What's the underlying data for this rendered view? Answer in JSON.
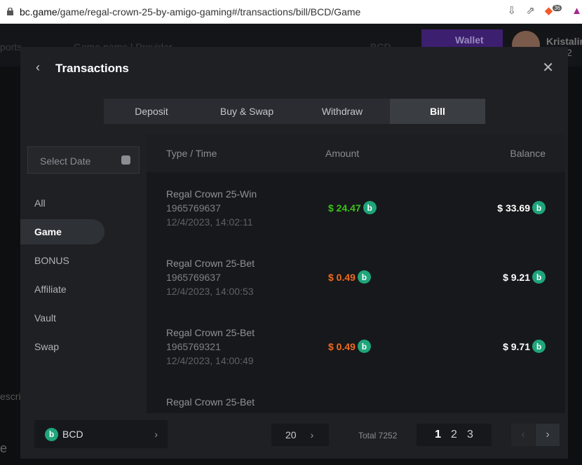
{
  "browser": {
    "url_host": "bc.game",
    "url_path": "/game/regal-crown-25-by-amigo-gaming#/transactions/bill/BCD/Game",
    "shield_badge": "36"
  },
  "background": {
    "nav_sports": "ports",
    "search_placeholder": "Game name | Provider",
    "currency": "BCD",
    "wallet": "Wallet",
    "username": "Kristalin",
    "level": "2",
    "desc": "escri",
    "letter": "e"
  },
  "modal": {
    "title": "Transactions",
    "tabs": [
      {
        "label": "Deposit"
      },
      {
        "label": "Buy & Swap"
      },
      {
        "label": "Withdraw"
      },
      {
        "label": "Bill"
      }
    ],
    "date_placeholder": "Select Date",
    "sidebar": [
      {
        "label": "All"
      },
      {
        "label": "Game"
      },
      {
        "label": "BONUS"
      },
      {
        "label": "Affiliate"
      },
      {
        "label": "Vault"
      },
      {
        "label": "Swap"
      }
    ],
    "columns": {
      "type": "Type / Time",
      "amount": "Amount",
      "balance": "Balance"
    },
    "rows": [
      {
        "type": "Regal Crown 25-Win",
        "id": "1965769637",
        "time": "12/4/2023, 14:02:11",
        "amount": "$ 24.47",
        "balance": "$ 33.69",
        "amount_color": "#3bc117"
      },
      {
        "type": "Regal Crown 25-Bet",
        "id": "1965769637",
        "time": "12/4/2023, 14:00:53",
        "amount": "$ 0.49",
        "balance": "$ 9.21",
        "amount_color": "#f06a1b"
      },
      {
        "type": "Regal Crown 25-Bet",
        "id": "1965769321",
        "time": "12/4/2023, 14:00:49",
        "amount": "$ 0.49",
        "balance": "$ 9.71",
        "amount_color": "#f06a1b"
      },
      {
        "type": "Regal Crown 25-Bet"
      }
    ],
    "footer": {
      "currency": "BCD",
      "per_page": "20",
      "total": "Total 7252",
      "pages": [
        "1",
        "2",
        "3"
      ],
      "current_page": "1"
    }
  }
}
